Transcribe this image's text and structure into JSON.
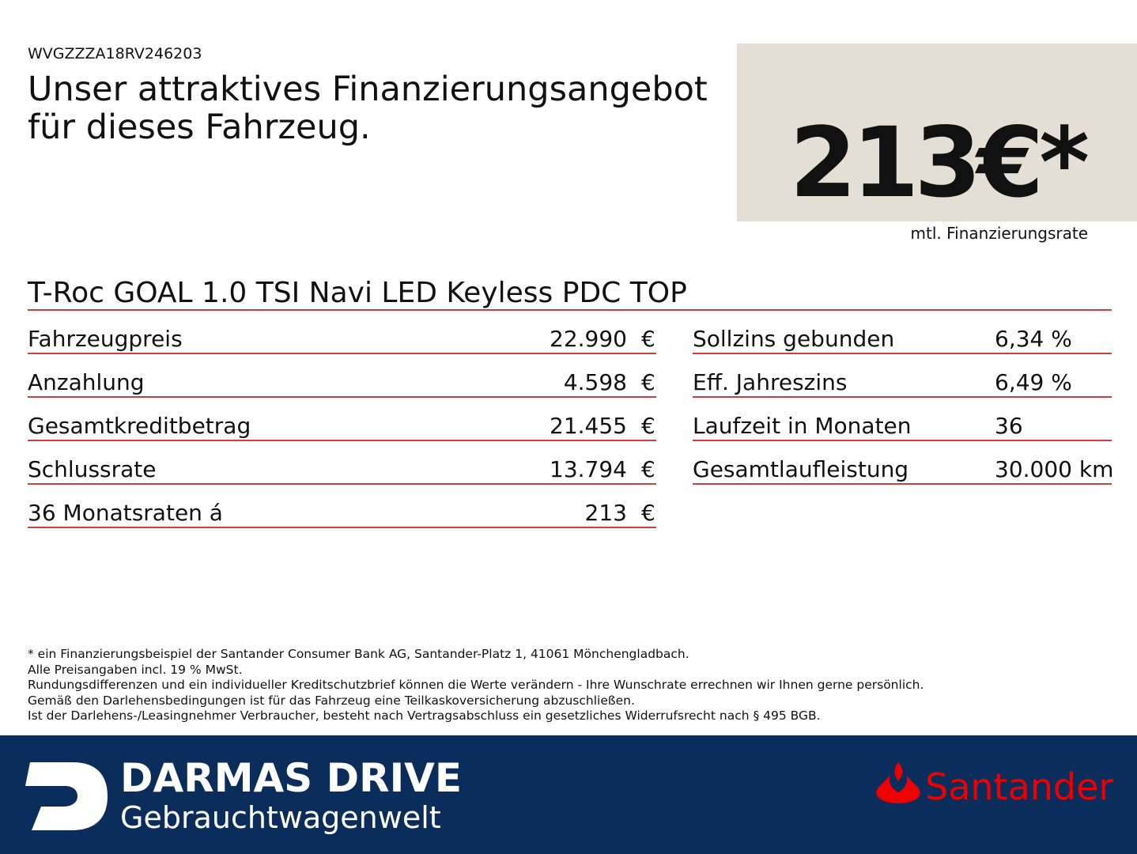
{
  "header": {
    "vin": "WVGZZZA18RV246203",
    "headline": [
      "Unser attraktives Finanzierungsangebot",
      "für dieses Fahrzeug."
    ]
  },
  "price_box": {
    "price": "213€*",
    "label": "mtl. Finanzierungsrate"
  },
  "model": "T-Roc GOAL 1.0 TSI Navi LED Keyless PDC TOP",
  "left_table": {
    "rows": [
      [
        "Fahrzeugpreis",
        "22.990",
        "€"
      ],
      [
        "Anzahlung",
        "4.598",
        "€"
      ],
      [
        "Gesamtkreditbetrag",
        "21.455",
        "€"
      ],
      [
        "Schlussrate",
        "13.794",
        "€"
      ],
      [
        "36 Monatsraten á",
        "213",
        "€"
      ]
    ]
  },
  "right_table": {
    "rows": [
      [
        "Sollzins gebunden",
        "6,34 %"
      ],
      [
        "Eff. Jahreszins",
        "6,49 %"
      ],
      [
        "Laufzeit in Monaten",
        "36"
      ],
      [
        "Gesamtlaufleistung",
        "30.000 km"
      ]
    ]
  },
  "footnotes": [
    "* ein Finanzierungsbeispiel der Santander Consumer Bank AG, Santander-Platz 1, 41061 Mönchengladbach.",
    "Alle Preisangaben incl. 19 % MwSt.",
    "Rundungsdifferenzen und ein individueller Kreditschutzbrief können die Werte verändern - Ihre Wunschrate errechnen wir Ihnen gerne persönlich.",
    "Gemäß den Darlehensbedingungen ist für das Fahrzeug eine Teilkaskoversicherung abzuschließen.",
    "Ist der Darlehens-/Leasingnehmer Verbraucher, besteht nach Vertragsabschluss ein gesetzliches Widerrufsrecht nach § 495 BGB."
  ],
  "footer": {
    "brand": "DARMAS DRIVE",
    "brand_sub": "Gebrauchtwagenwelt",
    "bank": "Santander"
  }
}
